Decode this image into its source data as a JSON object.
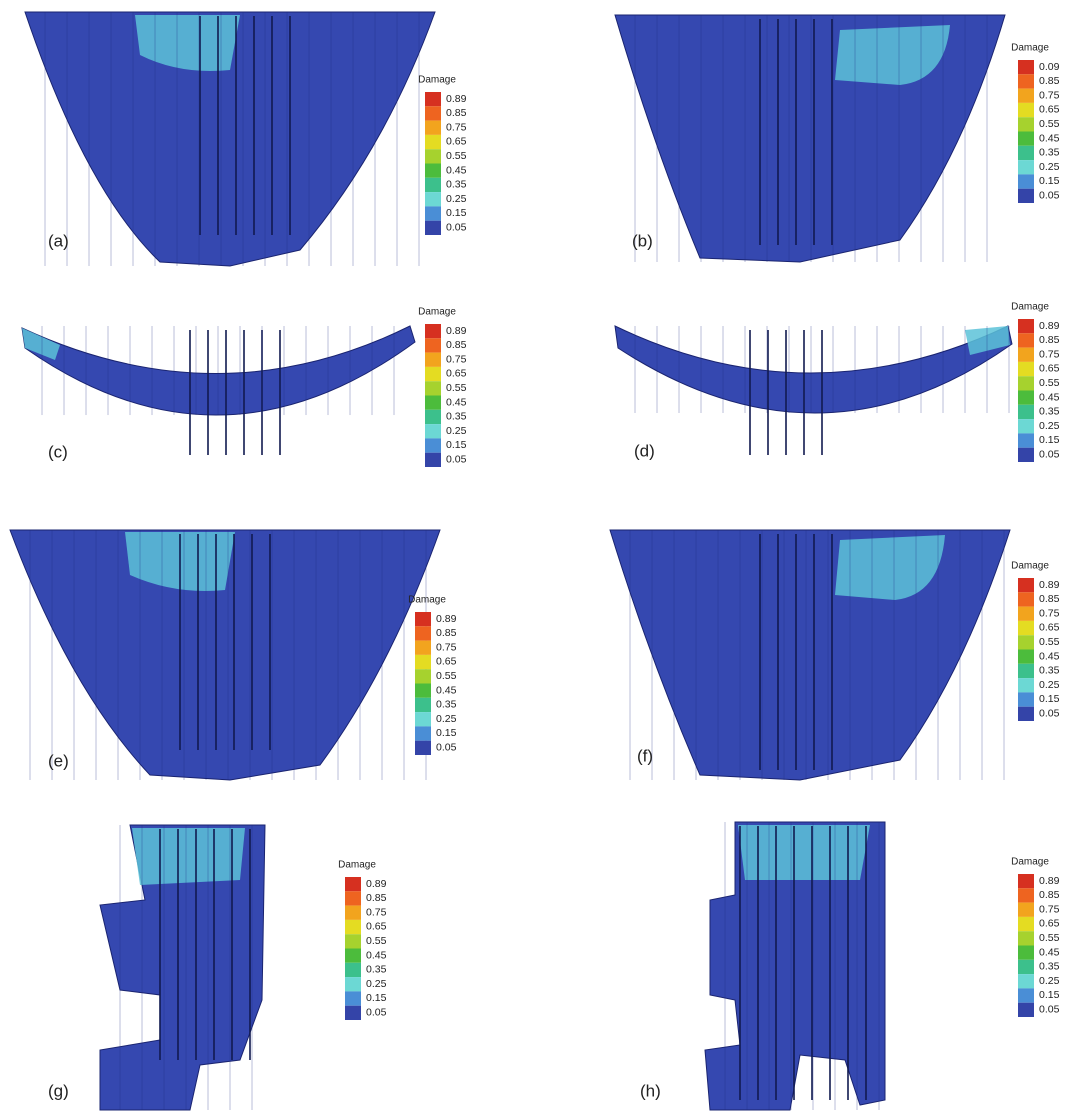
{
  "panels": [
    {
      "label": "(a)",
      "legend": {
        "title": "Damage",
        "levels": [
          "0.89",
          "0.85",
          "0.75",
          "0.65",
          "0.55",
          "0.45",
          "0.35",
          "0.25",
          "0.15",
          "0.05"
        ]
      }
    },
    {
      "label": "(b)",
      "legend": {
        "title": "Damage",
        "levels": [
          "0.09",
          "0.85",
          "0.75",
          "0.65",
          "0.55",
          "0.45",
          "0.35",
          "0.25",
          "0.15",
          "0.05"
        ]
      }
    },
    {
      "label": "(c)",
      "legend": {
        "title": "Damage",
        "levels": [
          "0.89",
          "0.85",
          "0.75",
          "0.65",
          "0.55",
          "0.45",
          "0.35",
          "0.25",
          "0.15",
          "0.05"
        ]
      }
    },
    {
      "label": "(d)",
      "legend": {
        "title": "Damage",
        "levels": [
          "0.89",
          "0.85",
          "0.75",
          "0.65",
          "0.55",
          "0.45",
          "0.35",
          "0.25",
          "0.15",
          "0.05"
        ]
      }
    },
    {
      "label": "(e)",
      "legend": {
        "title": "Damage",
        "levels": [
          "0.89",
          "0.85",
          "0.75",
          "0.65",
          "0.55",
          "0.45",
          "0.35",
          "0.25",
          "0.15",
          "0.05"
        ]
      }
    },
    {
      "label": "(f)",
      "legend": {
        "title": "Damage",
        "levels": [
          "0.89",
          "0.85",
          "0.75",
          "0.65",
          "0.55",
          "0.45",
          "0.35",
          "0.25",
          "0.15",
          "0.05"
        ]
      }
    },
    {
      "label": "(g)",
      "legend": {
        "title": "Damage",
        "levels": [
          "0.89",
          "0.85",
          "0.75",
          "0.65",
          "0.55",
          "0.45",
          "0.35",
          "0.25",
          "0.15",
          "0.05"
        ]
      }
    },
    {
      "label": "(h)",
      "legend": {
        "title": "Damage",
        "levels": [
          "0.89",
          "0.85",
          "0.75",
          "0.65",
          "0.55",
          "0.45",
          "0.35",
          "0.25",
          "0.15",
          "0.05"
        ]
      }
    }
  ]
}
